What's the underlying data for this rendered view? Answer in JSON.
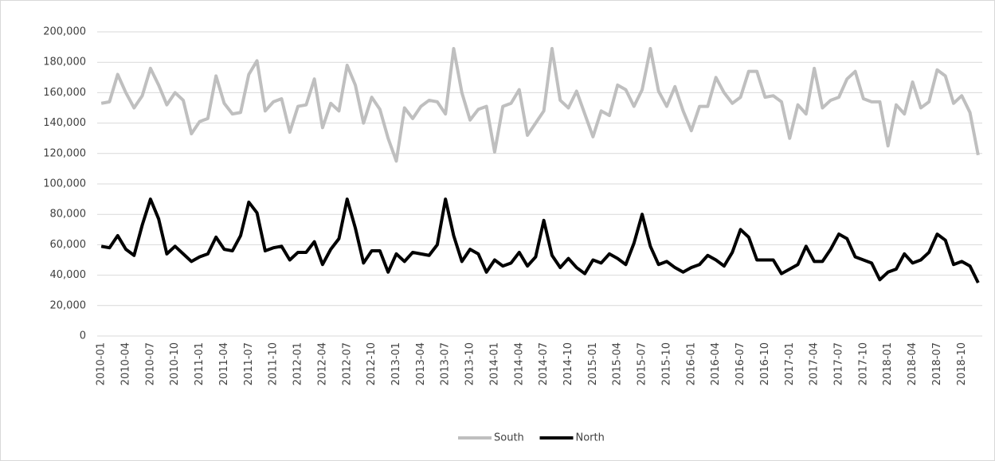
{
  "chart_data": {
    "type": "line",
    "categories": [
      "2010-01",
      null,
      null,
      "2010-04",
      null,
      null,
      "2010-07",
      null,
      null,
      "2010-10",
      null,
      null,
      "2011-01",
      null,
      null,
      "2011-04",
      null,
      null,
      "2011-07",
      null,
      null,
      "2011-10",
      null,
      null,
      "2012-01",
      null,
      null,
      "2012-04",
      null,
      null,
      "2012-07",
      null,
      null,
      "2012-10",
      null,
      null,
      "2013-01",
      null,
      null,
      "2013-04",
      null,
      null,
      "2013-07",
      null,
      null,
      "2013-10",
      null,
      null,
      "2014-01",
      null,
      null,
      "2014-04",
      null,
      null,
      "2014-07",
      null,
      null,
      "2014-10",
      null,
      null,
      "2015-01",
      null,
      null,
      "2015-04",
      null,
      null,
      "2015-07",
      null,
      null,
      "2015-10",
      null,
      null,
      "2016-01",
      null,
      null,
      "2016-04",
      null,
      null,
      "2016-07",
      null,
      null,
      "2016-10",
      null,
      null,
      "2017-01",
      null,
      null,
      "2017-04",
      null,
      null,
      "2017-07",
      null,
      null,
      "2017-10",
      null,
      null,
      "2018-01",
      null,
      null,
      "2018-04",
      null,
      null,
      "2018-07",
      null,
      null,
      "2018-10",
      null,
      null
    ],
    "series": [
      {
        "name": "South",
        "color": "#bfbfbf",
        "values": [
          153000,
          154000,
          172000,
          160000,
          150000,
          158000,
          176000,
          165000,
          152000,
          160000,
          155000,
          133000,
          141000,
          143000,
          171000,
          153000,
          146000,
          147000,
          172000,
          181000,
          148000,
          154000,
          156000,
          134000,
          151000,
          152000,
          169000,
          137000,
          153000,
          148000,
          178000,
          165000,
          140000,
          157000,
          149000,
          130000,
          115000,
          150000,
          143000,
          151000,
          155000,
          154000,
          146000,
          189000,
          160000,
          142000,
          149000,
          151000,
          121000,
          151000,
          153000,
          162000,
          132000,
          140000,
          148000,
          189000,
          155000,
          150000,
          161000,
          146000,
          131000,
          148000,
          145000,
          165000,
          162000,
          151000,
          162000,
          189000,
          161000,
          151000,
          164000,
          148000,
          135000,
          151000,
          151000,
          170000,
          160000,
          153000,
          157000,
          174000,
          174000,
          157000,
          158000,
          154000,
          130000,
          152000,
          146000,
          176000,
          150000,
          155000,
          157000,
          169000,
          174000,
          156000,
          154000,
          154000,
          125000,
          152000,
          146000,
          167000,
          150000,
          154000,
          175000,
          171000,
          153000,
          158000,
          147000,
          119000
        ]
      },
      {
        "name": "North",
        "color": "#000000",
        "values": [
          59000,
          58000,
          66000,
          57000,
          53000,
          73000,
          90000,
          77000,
          54000,
          59000,
          54000,
          49000,
          52000,
          54000,
          65000,
          57000,
          56000,
          66000,
          88000,
          81000,
          56000,
          58000,
          59000,
          50000,
          55000,
          55000,
          62000,
          47000,
          57000,
          64000,
          90000,
          71000,
          48000,
          56000,
          56000,
          42000,
          54000,
          49000,
          55000,
          54000,
          53000,
          60000,
          90000,
          66000,
          49000,
          57000,
          54000,
          42000,
          50000,
          46000,
          48000,
          55000,
          46000,
          52000,
          76000,
          53000,
          45000,
          51000,
          45000,
          41000,
          50000,
          48000,
          54000,
          51000,
          47000,
          61000,
          80000,
          59000,
          47000,
          49000,
          45000,
          42000,
          45000,
          47000,
          53000,
          50000,
          46000,
          55000,
          70000,
          65000,
          50000,
          50000,
          50000,
          41000,
          44000,
          47000,
          59000,
          49000,
          49000,
          57000,
          67000,
          64000,
          52000,
          50000,
          48000,
          37000,
          42000,
          44000,
          54000,
          48000,
          50000,
          55000,
          67000,
          63000,
          47000,
          49000,
          46000,
          35000
        ]
      }
    ],
    "ylim": [
      0,
      200000
    ],
    "yticks": [
      0,
      {
        "value": 20000,
        "label": "20,000"
      },
      {
        "value": 40000,
        "label": "40,000"
      },
      {
        "value": 60000,
        "label": "60,000"
      },
      {
        "value": 80000,
        "label": "80,000"
      },
      {
        "value": 100000,
        "label": "100,000"
      },
      {
        "value": 120000,
        "label": "120,000"
      },
      {
        "value": 140000,
        "label": "140,000"
      },
      {
        "value": 160000,
        "label": "160,000"
      },
      {
        "value": 180000,
        "label": "180,000"
      },
      {
        "value": 200000,
        "label": "200,000"
      }
    ],
    "grid": true,
    "legend": "bottom"
  }
}
